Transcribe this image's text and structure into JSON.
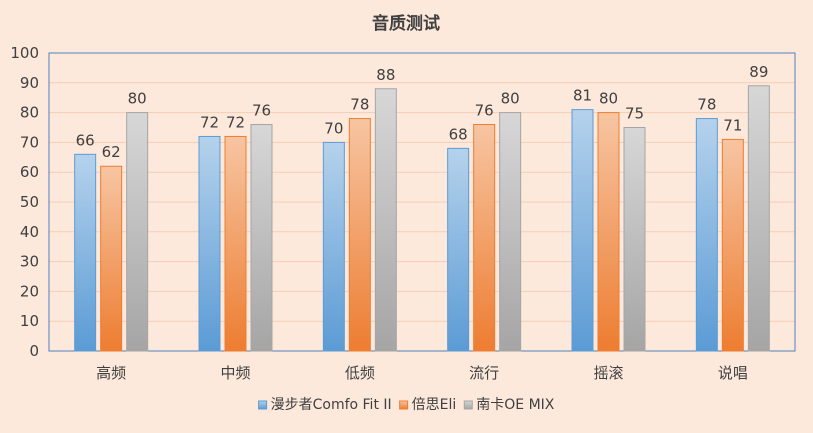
{
  "chart_data": {
    "type": "bar",
    "title": "音质测试",
    "xlabel": "",
    "ylabel": "",
    "categories": [
      "高频",
      "中频",
      "低频",
      "流行",
      "摇滚",
      "说唱"
    ],
    "series": [
      {
        "name": "漫步者Comfo Fit II",
        "values": [
          66,
          72,
          70,
          68,
          81,
          78
        ],
        "color": "#5b9bd5"
      },
      {
        "name": "倍思Eli",
        "values": [
          62,
          72,
          78,
          76,
          80,
          71
        ],
        "color": "#ed7d31"
      },
      {
        "name": "南卡OE MIX",
        "values": [
          80,
          76,
          88,
          80,
          75,
          89
        ],
        "color": "#a5a5a5"
      }
    ],
    "ylim": [
      0,
      100
    ],
    "yticks": [
      0,
      10,
      20,
      30,
      40,
      50,
      60,
      70,
      80,
      90,
      100
    ],
    "grid": true,
    "legend_position": "bottom",
    "data_labels": true
  }
}
